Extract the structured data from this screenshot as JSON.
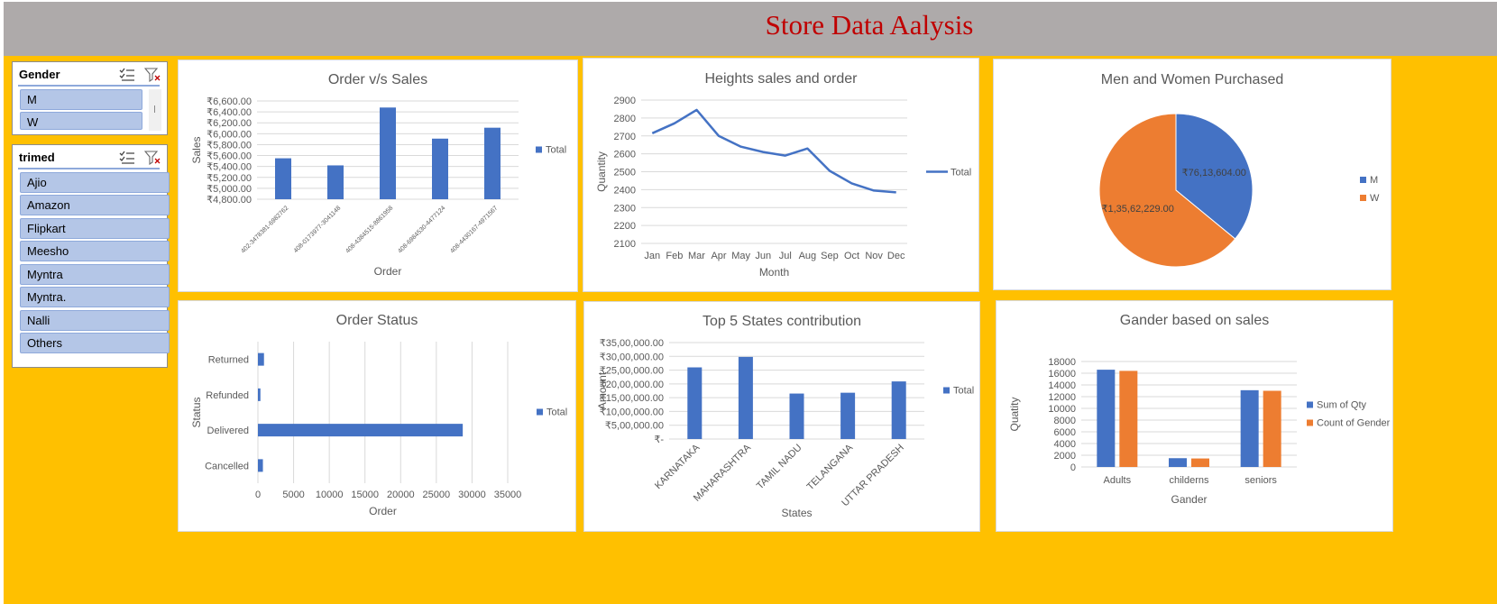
{
  "dashboard": {
    "title": "Store Data Aalysis"
  },
  "slicers": {
    "gender": {
      "title": "Gender",
      "items": [
        "M",
        "W"
      ]
    },
    "trimed": {
      "title": "trimed",
      "items": [
        "Ajio",
        "Amazon",
        "Flipkart",
        "Meesho",
        "Myntra",
        "Myntra.",
        "Nalli",
        "Others"
      ]
    }
  },
  "colors": {
    "blue": "#4472c4",
    "orange": "#ed7d31",
    "grid": "#d9d9d9",
    "axis_text": "#595959",
    "banner": "#aeaaaa",
    "background": "#ffc000",
    "title_red": "#c00000"
  },
  "chart_data": [
    {
      "id": "order_sales",
      "type": "bar",
      "title": "Order v/s Sales",
      "xlabel": "Order",
      "ylabel": "Sales",
      "categories": [
        "402-3478381-6982762",
        "408-0173977-3041148",
        "408-4384515-8861958",
        "408-6984530-4477124",
        "408-4430167-4971567"
      ],
      "series": [
        {
          "name": "Total",
          "values": [
            5550,
            5420,
            6480,
            5910,
            6110
          ]
        }
      ],
      "ylim": [
        4800,
        6600
      ],
      "yticks": [
        4800,
        5000,
        5200,
        5400,
        5600,
        5800,
        6000,
        6200,
        6400,
        6600
      ],
      "ytick_labels": [
        "₹4,800.00",
        "₹5,000.00",
        "₹5,200.00",
        "₹5,400.00",
        "₹5,600.00",
        "₹5,800.00",
        "₹6,000.00",
        "₹6,200.00",
        "₹6,400.00",
        "₹6,600.00"
      ],
      "legend": "right",
      "grid": true
    },
    {
      "id": "heights_sales",
      "type": "line",
      "title": "Heights sales and order",
      "xlabel": "Month",
      "ylabel": "Quantity",
      "categories": [
        "Jan",
        "Feb",
        "Mar",
        "Apr",
        "May",
        "Jun",
        "Jul",
        "Aug",
        "Sep",
        "Oct",
        "Nov",
        "Dec"
      ],
      "series": [
        {
          "name": "Total",
          "values": [
            2715,
            2770,
            2845,
            2700,
            2640,
            2610,
            2590,
            2630,
            2505,
            2435,
            2395,
            2385
          ]
        }
      ],
      "ylim": [
        2100,
        2900
      ],
      "yticks": [
        2100,
        2200,
        2300,
        2400,
        2500,
        2600,
        2700,
        2800,
        2900
      ],
      "ytick_labels": [
        "2100",
        "2200",
        "2300",
        "2400",
        "2500",
        "2600",
        "2700",
        "2800",
        "2900"
      ],
      "legend": "right",
      "grid": true
    },
    {
      "id": "men_women",
      "type": "pie",
      "title": "Men and Women Purchased",
      "slices": [
        {
          "name": "M",
          "value": 7613604.0,
          "label": "₹76,13,604.00",
          "color": "#4472c4"
        },
        {
          "name": "W",
          "value": 13562229.0,
          "label": "₹1,35,62,229.00",
          "color": "#ed7d31"
        }
      ],
      "legend": "right"
    },
    {
      "id": "order_status",
      "type": "bar",
      "orientation": "horizontal",
      "title": "Order Status",
      "xlabel": "Order",
      "ylabel": "Status",
      "categories": [
        "Returned",
        "Refunded",
        "Delivered",
        "Cancelled"
      ],
      "series": [
        {
          "name": "Total",
          "values": [
            850,
            350,
            28700,
            700
          ]
        }
      ],
      "xlim": [
        0,
        35000
      ],
      "xticks": [
        0,
        5000,
        10000,
        15000,
        20000,
        25000,
        30000,
        35000
      ],
      "xtick_labels": [
        "0",
        "5000",
        "10000",
        "15000",
        "20000",
        "25000",
        "30000",
        "35000"
      ],
      "legend": "right",
      "grid": true
    },
    {
      "id": "top5_states",
      "type": "bar",
      "title": "Top 5 States contribution",
      "xlabel": "States",
      "ylabel": "Amount",
      "categories": [
        "KARNATAKA",
        "MAHARASHTRA",
        "TAMIL NADU",
        "TELANGANA",
        "UTTAR PRADESH"
      ],
      "series": [
        {
          "name": "Total",
          "values": [
            2600000,
            2980000,
            1650000,
            1680000,
            2090000
          ]
        }
      ],
      "ylim": [
        0,
        3500000
      ],
      "yticks": [
        0,
        500000,
        1000000,
        1500000,
        2000000,
        2500000,
        3000000,
        3500000
      ],
      "ytick_labels": [
        "₹-",
        "₹5,00,000.00",
        "₹10,00,000.00",
        "₹15,00,000.00",
        "₹20,00,000.00",
        "₹25,00,000.00",
        "₹30,00,000.00",
        "₹35,00,000.00"
      ],
      "legend": "right",
      "grid": true
    },
    {
      "id": "gender_sales",
      "type": "bar",
      "title": "Gander based on sales",
      "xlabel": "Gander",
      "ylabel": "Quatity",
      "categories": [
        "Adults",
        "childerns",
        "seniors"
      ],
      "series": [
        {
          "name": "Sum of Qty",
          "values": [
            16600,
            1500,
            13100
          ],
          "color": "#4472c4"
        },
        {
          "name": "Count of Gender",
          "values": [
            16400,
            1450,
            13000
          ],
          "color": "#ed7d31"
        }
      ],
      "ylim": [
        0,
        18000
      ],
      "yticks": [
        0,
        2000,
        4000,
        6000,
        8000,
        10000,
        12000,
        14000,
        16000,
        18000
      ],
      "ytick_labels": [
        "0",
        "2000",
        "4000",
        "6000",
        "8000",
        "10000",
        "12000",
        "14000",
        "16000",
        "18000"
      ],
      "legend": "right",
      "grid": true
    }
  ]
}
